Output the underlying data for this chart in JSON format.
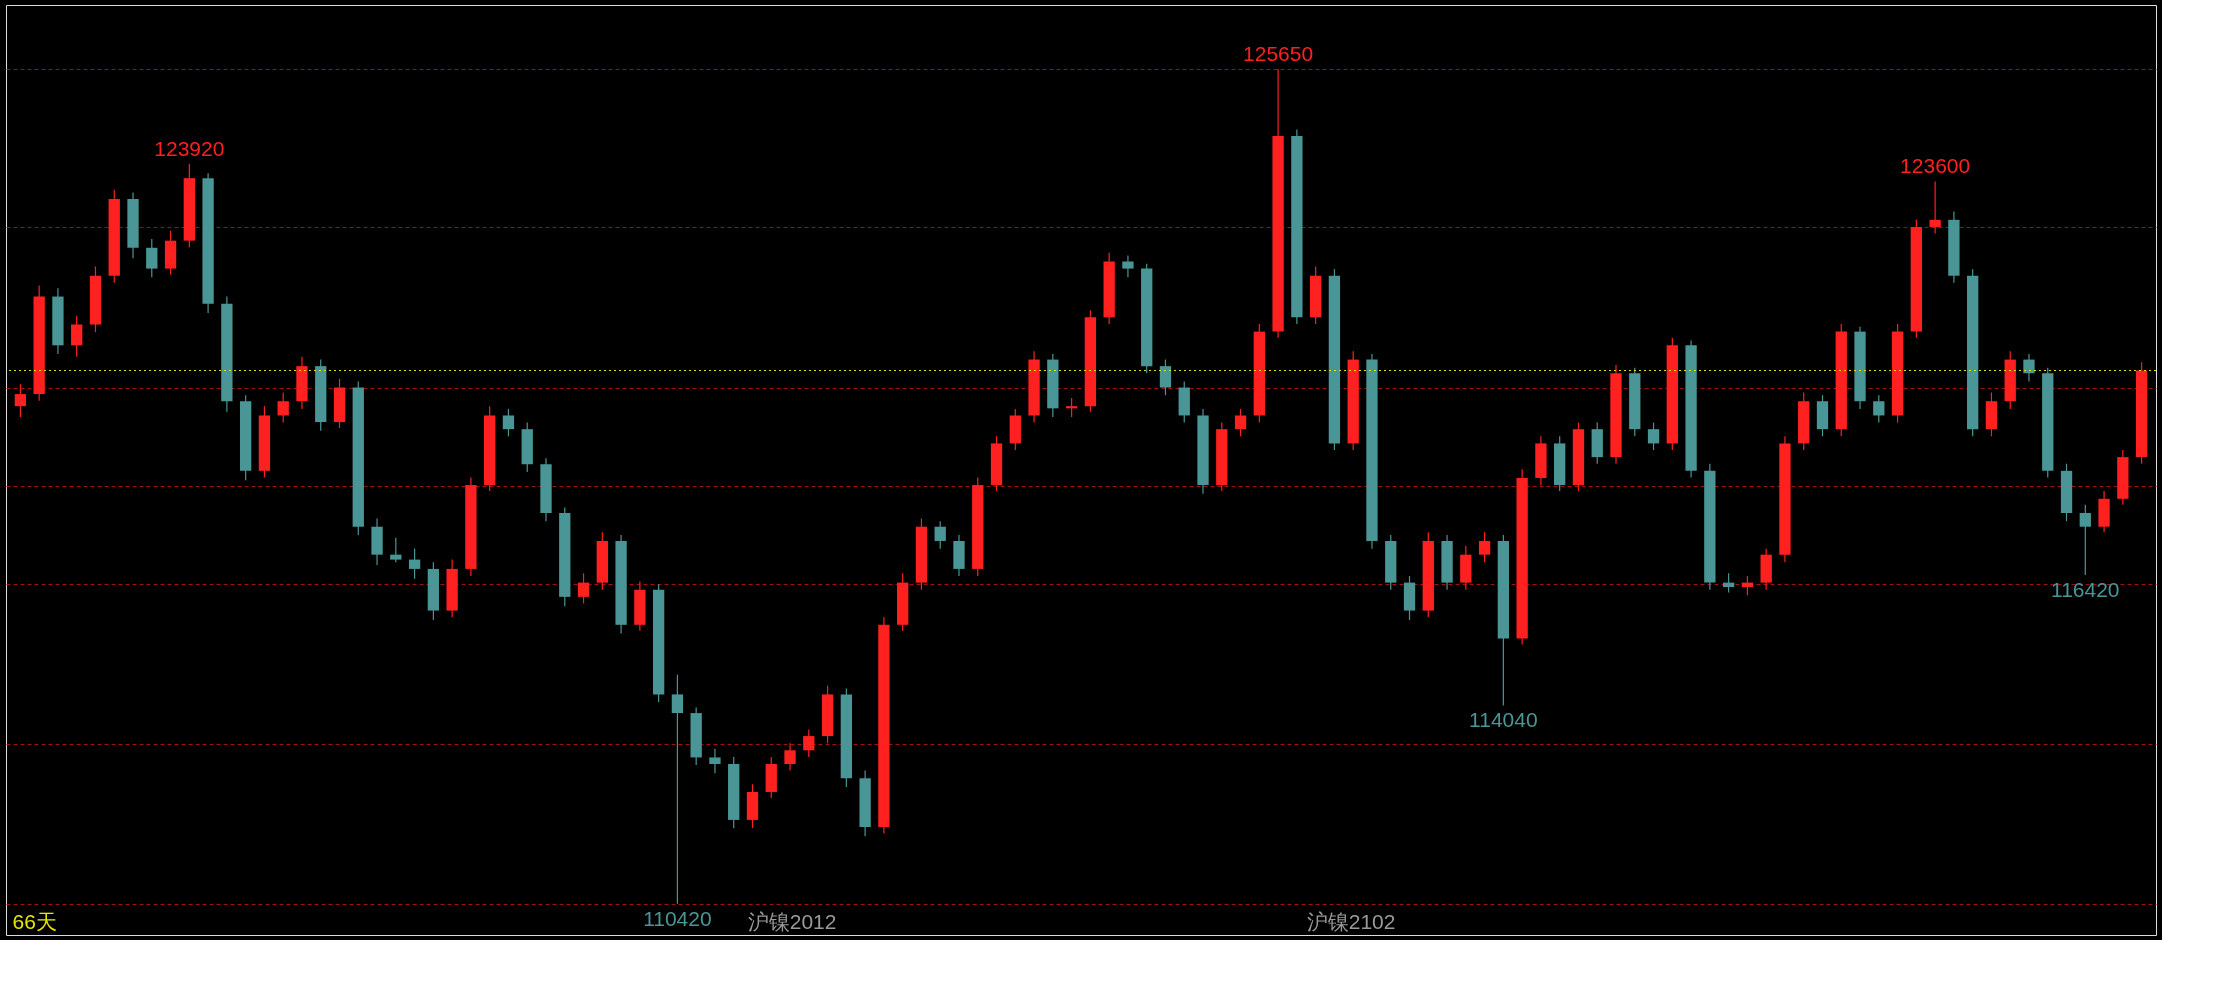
{
  "chart_data": {
    "type": "candlestick",
    "categories": [
      null,
      null,
      null,
      null,
      null,
      null,
      null,
      null,
      null,
      null,
      null,
      null,
      null,
      null,
      null,
      null,
      null,
      null,
      null,
      null,
      null,
      null,
      null,
      null,
      null,
      null,
      null,
      null,
      null,
      null,
      null,
      null,
      null,
      null,
      null,
      null,
      null,
      null,
      null,
      null,
      null,
      null,
      null,
      null,
      null,
      null,
      null,
      null,
      null,
      null,
      null,
      null,
      null,
      null,
      null,
      null,
      null,
      null,
      null,
      null,
      null,
      null,
      null,
      null,
      null,
      null,
      null,
      null,
      null,
      null,
      null,
      null,
      null,
      null,
      null,
      null,
      null,
      null,
      null,
      null,
      null,
      null,
      null,
      null,
      null,
      null,
      null,
      null,
      null,
      null,
      null,
      null,
      null,
      null,
      null,
      null,
      null,
      null,
      null,
      null,
      null,
      null,
      null,
      null,
      null,
      null,
      null,
      null,
      null,
      null,
      null,
      null,
      null,
      null
    ],
    "ohlc": [
      [
        119500,
        119900,
        119300,
        119720
      ],
      [
        119720,
        121700,
        119600,
        121500
      ],
      [
        121500,
        121650,
        120450,
        120610
      ],
      [
        120610,
        121150,
        120400,
        120990
      ],
      [
        120990,
        122050,
        120850,
        121880
      ],
      [
        121880,
        123450,
        121750,
        123280
      ],
      [
        123280,
        123400,
        122200,
        122390
      ],
      [
        122390,
        122550,
        121850,
        122010
      ],
      [
        122010,
        122700,
        121900,
        122520
      ],
      [
        122520,
        123920,
        122400,
        123660
      ],
      [
        123660,
        123750,
        121200,
        121370
      ],
      [
        121370,
        121500,
        119400,
        119590
      ],
      [
        119590,
        119700,
        118150,
        118320
      ],
      [
        118320,
        119500,
        118200,
        119330
      ],
      [
        119330,
        119750,
        119200,
        119590
      ],
      [
        119590,
        120400,
        119450,
        120230
      ],
      [
        120230,
        120350,
        119050,
        119210
      ],
      [
        119210,
        120000,
        119100,
        119840
      ],
      [
        119840,
        119950,
        117150,
        117300
      ],
      [
        117300,
        117450,
        116600,
        116790
      ],
      [
        116790,
        117100,
        116650,
        116700
      ],
      [
        116700,
        116900,
        116350,
        116530
      ],
      [
        116530,
        116650,
        115600,
        115770
      ],
      [
        115770,
        116700,
        115650,
        116530
      ],
      [
        116530,
        118200,
        116400,
        118060
      ],
      [
        118060,
        119500,
        117950,
        119330
      ],
      [
        119330,
        119450,
        118950,
        119080
      ],
      [
        119080,
        119200,
        118300,
        118440
      ],
      [
        118440,
        118550,
        117400,
        117550
      ],
      [
        117550,
        117650,
        115850,
        116020
      ],
      [
        116020,
        116450,
        115900,
        116280
      ],
      [
        116280,
        117200,
        116150,
        117040
      ],
      [
        117040,
        117150,
        115350,
        115510
      ],
      [
        115510,
        116300,
        115400,
        116150
      ],
      [
        116150,
        116250,
        114100,
        114240
      ],
      [
        114240,
        114600,
        110420,
        113900
      ],
      [
        113900,
        114000,
        112950,
        113090
      ],
      [
        113090,
        113250,
        112800,
        112970
      ],
      [
        112970,
        113100,
        111800,
        111950
      ],
      [
        111950,
        112600,
        111800,
        112460
      ],
      [
        112460,
        113100,
        112350,
        112970
      ],
      [
        112970,
        113350,
        112850,
        113220
      ],
      [
        113220,
        113600,
        113100,
        113480
      ],
      [
        113480,
        114400,
        113350,
        114240
      ],
      [
        114240,
        114350,
        112550,
        112710
      ],
      [
        112710,
        112850,
        111650,
        111820
      ],
      [
        111820,
        115650,
        111700,
        115510
      ],
      [
        115510,
        116450,
        115400,
        116280
      ],
      [
        116280,
        117450,
        116150,
        117300
      ],
      [
        117300,
        117400,
        116900,
        117040
      ],
      [
        117040,
        117150,
        116400,
        116530
      ],
      [
        116530,
        118200,
        116400,
        118060
      ],
      [
        118060,
        118950,
        117950,
        118820
      ],
      [
        118820,
        119450,
        118700,
        119330
      ],
      [
        119330,
        120500,
        119200,
        120350
      ],
      [
        120350,
        120450,
        119300,
        119460
      ],
      [
        119460,
        119650,
        119300,
        119500
      ],
      [
        119500,
        121250,
        119400,
        121120
      ],
      [
        121120,
        122300,
        121000,
        122140
      ],
      [
        122140,
        122250,
        121850,
        122010
      ],
      [
        122010,
        122100,
        120100,
        120230
      ],
      [
        120230,
        120350,
        119700,
        119840
      ],
      [
        119840,
        119950,
        119200,
        119330
      ],
      [
        119330,
        119450,
        117900,
        118060
      ],
      [
        118060,
        119200,
        117950,
        119080
      ],
      [
        119080,
        119450,
        118950,
        119330
      ],
      [
        119330,
        121000,
        119200,
        120860
      ],
      [
        120860,
        125650,
        120750,
        124430
      ],
      [
        124430,
        124550,
        121000,
        121120
      ],
      [
        121120,
        122050,
        121000,
        121880
      ],
      [
        121880,
        122000,
        118700,
        118820
      ],
      [
        118820,
        120500,
        118700,
        120350
      ],
      [
        120350,
        120450,
        116900,
        117040
      ],
      [
        117040,
        117150,
        116150,
        116280
      ],
      [
        116280,
        116400,
        115600,
        115770
      ],
      [
        115770,
        117200,
        115650,
        117040
      ],
      [
        117040,
        117150,
        116150,
        116280
      ],
      [
        116280,
        116950,
        116150,
        116790
      ],
      [
        116790,
        117200,
        116650,
        117040
      ],
      [
        117040,
        117150,
        114040,
        115260
      ],
      [
        115260,
        118350,
        115150,
        118190
      ],
      [
        118190,
        118950,
        118050,
        118820
      ],
      [
        118820,
        118950,
        117950,
        118060
      ],
      [
        118060,
        119200,
        117950,
        119080
      ],
      [
        119080,
        119200,
        118450,
        118570
      ],
      [
        118570,
        120250,
        118450,
        120100
      ],
      [
        120100,
        120200,
        118950,
        119080
      ],
      [
        119080,
        119200,
        118700,
        118820
      ],
      [
        118820,
        120750,
        118700,
        120610
      ],
      [
        120610,
        120700,
        118200,
        118320
      ],
      [
        118320,
        118450,
        116150,
        116280
      ],
      [
        116280,
        116450,
        116100,
        116200
      ],
      [
        116200,
        116400,
        116050,
        116280
      ],
      [
        116280,
        116900,
        116150,
        116790
      ],
      [
        116790,
        118950,
        116650,
        118820
      ],
      [
        118820,
        119750,
        118700,
        119590
      ],
      [
        119590,
        119700,
        118950,
        119080
      ],
      [
        119080,
        121000,
        118950,
        120860
      ],
      [
        120860,
        120950,
        119450,
        119590
      ],
      [
        119590,
        119700,
        119200,
        119330
      ],
      [
        119330,
        121000,
        119200,
        120860
      ],
      [
        120860,
        122900,
        120750,
        122770
      ],
      [
        122770,
        123600,
        122650,
        122900
      ],
      [
        122900,
        123050,
        121750,
        121880
      ],
      [
        121880,
        122000,
        118950,
        119080
      ],
      [
        119080,
        119750,
        118950,
        119590
      ],
      [
        119590,
        120500,
        119450,
        120350
      ],
      [
        120350,
        120450,
        119950,
        120100
      ],
      [
        120100,
        120200,
        118200,
        118320
      ],
      [
        118320,
        118450,
        117400,
        117550
      ],
      [
        117550,
        117700,
        116420,
        117300
      ],
      [
        117300,
        117950,
        117200,
        117810
      ],
      [
        117810,
        118700,
        117700,
        118570
      ],
      [
        118570,
        120300,
        118450,
        120150
      ]
    ],
    "colors": [
      "#ff2020",
      "#ff2020",
      "#4a9696",
      "#ff2020",
      "#ff2020",
      "#ff2020",
      "#4a9696",
      "#4a9696",
      "#ff2020",
      "#ff2020",
      "#4a9696",
      "#4a9696",
      "#4a9696",
      "#ff2020",
      "#ff2020",
      "#ff2020",
      "#4a9696",
      "#ff2020",
      "#4a9696",
      "#4a9696",
      "#4a9696",
      "#4a9696",
      "#4a9696",
      "#ff2020",
      "#ff2020",
      "#ff2020",
      "#4a9696",
      "#4a9696",
      "#4a9696",
      "#4a9696",
      "#ff2020",
      "#ff2020",
      "#4a9696",
      "#ff2020",
      "#4a9696",
      "#4a9696",
      "#4a9696",
      "#4a9696",
      "#4a9696",
      "#ff2020",
      "#ff2020",
      "#ff2020",
      "#ff2020",
      "#ff2020",
      "#4a9696",
      "#4a9696",
      "#ff2020",
      "#ff2020",
      "#ff2020",
      "#4a9696",
      "#4a9696",
      "#ff2020",
      "#ff2020",
      "#ff2020",
      "#ff2020",
      "#4a9696",
      "#ff2020",
      "#ff2020",
      "#ff2020",
      "#4a9696",
      "#4a9696",
      "#4a9696",
      "#4a9696",
      "#4a9696",
      "#ff2020",
      "#ff2020",
      "#ff2020",
      "#ff2020",
      "#4a9696",
      "#ff2020",
      "#4a9696",
      "#ff2020",
      "#4a9696",
      "#4a9696",
      "#4a9696",
      "#ff2020",
      "#4a9696",
      "#ff2020",
      "#ff2020",
      "#4a9696",
      "#ff2020",
      "#ff2020",
      "#4a9696",
      "#ff2020",
      "#4a9696",
      "#ff2020",
      "#4a9696",
      "#4a9696",
      "#ff2020",
      "#4a9696",
      "#4a9696",
      "#4a9696",
      "#ff2020",
      "#ff2020",
      "#ff2020",
      "#ff2020",
      "#4a9696",
      "#ff2020",
      "#4a9696",
      "#4a9696",
      "#ff2020",
      "#ff2020",
      "#ff2020",
      "#4a9696",
      "#4a9696",
      "#ff2020",
      "#ff2020",
      "#4a9696",
      "#4a9696",
      "#4a9696",
      "#4a9696",
      "#ff2020",
      "#ff2020",
      "#ff2020"
    ],
    "ylim": [
      109850,
      126820
    ],
    "yticks": [
      {
        "value": 110420,
        "label": null
      },
      {
        "value": 113340,
        "label": null
      },
      {
        "value": 116260,
        "label": null
      },
      {
        "value": 118040,
        "label": null
      },
      {
        "value": 119840,
        "label": null
      },
      {
        "value": 122760,
        "label": null
      },
      {
        "value": 125650,
        "label": null
      }
    ],
    "tick_labels": false,
    "grid": "y",
    "ref_lines": [
      {
        "axis": "y",
        "value": 120150,
        "color": "#e6e600",
        "line_style": "dotted"
      }
    ],
    "annotations": [
      {
        "text": "123920",
        "y": 123920
      },
      {
        "text": "125650",
        "y": 125650
      },
      {
        "text": "123600",
        "y": 123600
      },
      {
        "text": "110420",
        "y": 110420
      },
      {
        "text": "114040",
        "y": 114040
      },
      {
        "text": "116420",
        "y": 116420
      },
      "66天",
      "沪镍2012",
      "沪镍2102"
    ]
  }
}
